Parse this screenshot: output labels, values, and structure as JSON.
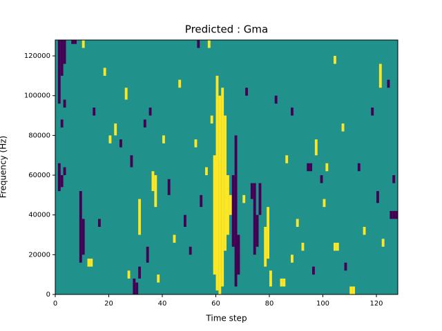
{
  "chart_data": {
    "type": "heatmap",
    "title": "Predicted : Gma",
    "xlabel": "Time step",
    "ylabel": "Frequency (Hz)",
    "xlim": [
      0,
      128
    ],
    "xticks": [
      0,
      20,
      40,
      60,
      80,
      100,
      120
    ],
    "ylim": [
      0,
      128000
    ],
    "yticks": [
      0,
      20000,
      40000,
      60000,
      80000,
      100000,
      120000
    ],
    "levels": [
      -1,
      0,
      1
    ],
    "level_colors": [
      "#440154",
      "#21918c",
      "#fde725"
    ],
    "segments": [
      [
        60,
        2000,
        110000,
        1
      ],
      [
        61,
        0,
        100000,
        1
      ],
      [
        62,
        4000,
        104000,
        1
      ],
      [
        59,
        10000,
        70000,
        1
      ],
      [
        63,
        22000,
        90000,
        1
      ],
      [
        64,
        30000,
        60000,
        1
      ],
      [
        65,
        40000,
        50000,
        1
      ],
      [
        58,
        86000,
        90000,
        1
      ],
      [
        1,
        96000,
        128000,
        -1
      ],
      [
        2,
        110000,
        128000,
        -1
      ],
      [
        3,
        116000,
        128000,
        -1
      ],
      [
        1,
        52000,
        66000,
        -1
      ],
      [
        2,
        54000,
        60000,
        -1
      ],
      [
        3,
        60000,
        64000,
        -1
      ],
      [
        2,
        84000,
        88000,
        -1
      ],
      [
        3,
        94000,
        98000,
        -1
      ],
      [
        67,
        4000,
        80000,
        -1
      ],
      [
        66,
        24000,
        60000,
        -1
      ],
      [
        68,
        10000,
        30000,
        -1
      ],
      [
        74,
        20000,
        56000,
        -1
      ],
      [
        75,
        24000,
        40000,
        -1
      ],
      [
        76,
        40000,
        56000,
        -1
      ],
      [
        73,
        48000,
        56000,
        -1
      ],
      [
        79,
        18000,
        44000,
        1
      ],
      [
        78,
        14000,
        34000,
        1
      ],
      [
        80,
        4000,
        12000,
        1
      ],
      [
        36,
        52000,
        62000,
        1
      ],
      [
        37,
        44000,
        60000,
        1
      ],
      [
        31,
        30000,
        48000,
        1
      ],
      [
        29,
        0,
        8000,
        -1
      ],
      [
        30,
        0,
        6000,
        -1
      ],
      [
        9,
        16000,
        52000,
        -1
      ],
      [
        10,
        20000,
        38000,
        -1
      ],
      [
        12,
        14000,
        18000,
        1
      ],
      [
        13,
        14000,
        18000,
        1
      ],
      [
        110,
        0,
        4000,
        1
      ],
      [
        111,
        0,
        4000,
        1
      ],
      [
        104,
        22000,
        26000,
        1
      ],
      [
        105,
        22000,
        26000,
        1
      ],
      [
        84,
        4000,
        8000,
        1
      ],
      [
        85,
        4000,
        8000,
        1
      ],
      [
        125,
        38000,
        42000,
        -1
      ],
      [
        126,
        38000,
        42000,
        -1
      ],
      [
        127,
        38000,
        42000,
        -1
      ],
      [
        94,
        62000,
        66000,
        -1
      ],
      [
        95,
        62000,
        66000,
        -1
      ],
      [
        97,
        70000,
        78000,
        1
      ],
      [
        101,
        62000,
        66000,
        1
      ],
      [
        6,
        126000,
        128000,
        -1
      ],
      [
        7,
        126000,
        128000,
        -1
      ],
      [
        57,
        124000,
        128000,
        1
      ],
      [
        53,
        124000,
        128000,
        -1
      ],
      [
        10,
        124000,
        128000,
        1
      ],
      [
        20,
        76000,
        80000,
        1
      ],
      [
        22,
        80000,
        86000,
        1
      ],
      [
        24,
        74000,
        78000,
        -1
      ],
      [
        26,
        98000,
        104000,
        1
      ],
      [
        28,
        64000,
        70000,
        -1
      ],
      [
        33,
        84000,
        88000,
        -1
      ],
      [
        35,
        90000,
        94000,
        -1
      ],
      [
        40,
        76000,
        80000,
        1
      ],
      [
        42,
        50000,
        58000,
        -1
      ],
      [
        44,
        26000,
        30000,
        1
      ],
      [
        46,
        104000,
        108000,
        1
      ],
      [
        48,
        34000,
        40000,
        -1
      ],
      [
        50,
        20000,
        24000,
        -1
      ],
      [
        52,
        74000,
        78000,
        1
      ],
      [
        54,
        44000,
        50000,
        -1
      ],
      [
        56,
        60000,
        64000,
        1
      ],
      [
        70,
        46000,
        50000,
        1
      ],
      [
        71,
        100000,
        104000,
        -1
      ],
      [
        82,
        96000,
        100000,
        -1
      ],
      [
        86,
        66000,
        70000,
        1
      ],
      [
        88,
        90000,
        94000,
        -1
      ],
      [
        90,
        34000,
        38000,
        1
      ],
      [
        92,
        22000,
        26000,
        1
      ],
      [
        99,
        56000,
        60000,
        -1
      ],
      [
        107,
        82000,
        86000,
        1
      ],
      [
        108,
        12000,
        16000,
        -1
      ],
      [
        113,
        62000,
        66000,
        -1
      ],
      [
        115,
        30000,
        34000,
        1
      ],
      [
        118,
        90000,
        94000,
        -1
      ],
      [
        120,
        46000,
        52000,
        -1
      ],
      [
        122,
        24000,
        28000,
        1
      ],
      [
        124,
        104000,
        108000,
        -1
      ],
      [
        126,
        56000,
        60000,
        -1
      ],
      [
        121,
        104000,
        116000,
        1
      ],
      [
        96,
        10000,
        14000,
        -1
      ],
      [
        100,
        44000,
        48000,
        1
      ],
      [
        104,
        116000,
        120000,
        1
      ],
      [
        88,
        16000,
        20000,
        1
      ],
      [
        14,
        90000,
        94000,
        -1
      ],
      [
        16,
        34000,
        38000,
        -1
      ],
      [
        18,
        110000,
        114000,
        1
      ],
      [
        27,
        8000,
        12000,
        1
      ],
      [
        31,
        8000,
        14000,
        -1
      ],
      [
        34,
        16000,
        24000,
        -1
      ],
      [
        38,
        6000,
        10000,
        1
      ]
    ]
  }
}
